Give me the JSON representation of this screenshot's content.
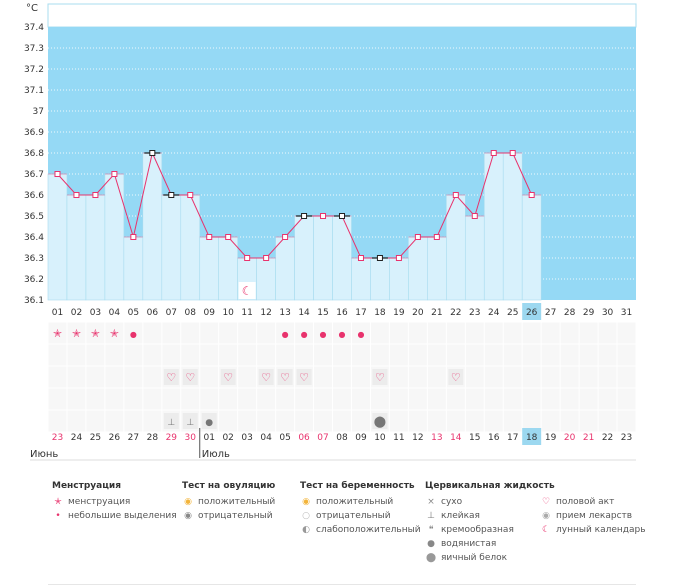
{
  "chart_data": {
    "type": "bar+line",
    "unit_label": "°C",
    "ylim": [
      36.1,
      37.4
    ],
    "y_ticks": [
      "37.4",
      "37.3",
      "37.2",
      "37.1",
      "37",
      "36.9",
      "36.8",
      "36.7",
      "36.6",
      "36.5",
      "36.4",
      "36.3",
      "36.2",
      "36.1"
    ],
    "cycle_days": [
      "01",
      "02",
      "03",
      "04",
      "05",
      "06",
      "07",
      "08",
      "09",
      "10",
      "11",
      "12",
      "13",
      "14",
      "15",
      "16",
      "17",
      "18",
      "19",
      "20",
      "21",
      "22",
      "23",
      "24",
      "25",
      "26",
      "27",
      "28",
      "29",
      "30",
      "31"
    ],
    "temperatures": [
      36.7,
      36.6,
      36.6,
      36.7,
      36.4,
      36.8,
      36.6,
      36.6,
      36.4,
      36.4,
      36.3,
      36.3,
      36.4,
      36.5,
      36.5,
      36.5,
      36.3,
      36.3,
      36.3,
      36.4,
      36.4,
      36.6,
      36.5,
      36.8,
      36.8,
      36.6,
      null,
      null,
      null,
      null,
      null
    ],
    "highlighted_points": [
      "06",
      "07",
      "14",
      "16",
      "18"
    ],
    "current_day": "26",
    "dates": [
      {
        "d": "23",
        "red": true
      },
      {
        "d": "24",
        "red": false
      },
      {
        "d": "25",
        "red": false
      },
      {
        "d": "26",
        "red": false
      },
      {
        "d": "27",
        "red": false
      },
      {
        "d": "28",
        "red": false
      },
      {
        "d": "29",
        "red": true
      },
      {
        "d": "30",
        "red": true
      },
      {
        "d": "01",
        "red": false
      },
      {
        "d": "02",
        "red": false
      },
      {
        "d": "03",
        "red": false
      },
      {
        "d": "04",
        "red": false
      },
      {
        "d": "05",
        "red": false
      },
      {
        "d": "06",
        "red": true
      },
      {
        "d": "07",
        "red": true
      },
      {
        "d": "08",
        "red": false
      },
      {
        "d": "09",
        "red": false
      },
      {
        "d": "10",
        "red": false
      },
      {
        "d": "11",
        "red": false
      },
      {
        "d": "12",
        "red": false
      },
      {
        "d": "13",
        "red": true
      },
      {
        "d": "14",
        "red": true
      },
      {
        "d": "15",
        "red": false
      },
      {
        "d": "16",
        "red": false
      },
      {
        "d": "17",
        "red": false
      },
      {
        "d": "18",
        "red": false
      },
      {
        "d": "19",
        "red": false
      },
      {
        "d": "20",
        "red": true
      },
      {
        "d": "21",
        "red": true
      },
      {
        "d": "22",
        "red": false
      },
      {
        "d": "23",
        "red": false
      }
    ],
    "month_labels": [
      {
        "text": "Июнь",
        "start_index": 0
      },
      {
        "text": "Июль",
        "start_index": 8
      }
    ],
    "menstruation": [
      "heavy",
      "heavy",
      "heavy",
      "heavy",
      "light",
      "",
      "",
      "",
      "",
      "",
      "",
      "",
      "light",
      "light",
      "light",
      "light",
      "light"
    ],
    "sex_days": [
      "07",
      "08",
      "10",
      "12",
      "13",
      "14",
      "18",
      "22"
    ],
    "mucus_days": [
      {
        "day": "07",
        "kind": "sticky"
      },
      {
        "day": "08",
        "kind": "sticky"
      },
      {
        "day": "09",
        "kind": "watery"
      },
      {
        "day": "18",
        "kind": "egg-white"
      }
    ],
    "lunar_day": "11",
    "colors": {
      "band": "#95d9f5",
      "bar": "#d8f1fc",
      "bar_border": "#a8dcef",
      "line": "#e8336d",
      "highlight_bg": "#9cd8f0",
      "red_text": "#e8336d"
    }
  },
  "legend": {
    "menstruation": {
      "title": "Менструация",
      "items": [
        "менструация",
        "небольшие выделения"
      ]
    },
    "ovulation_test": {
      "title": "Тест на овуляцию",
      "items": [
        "положительный",
        "отрицательный"
      ]
    },
    "pregnancy_test": {
      "title": "Тест на беременность",
      "items": [
        "положительный",
        "отрицательный",
        "слабоположительный"
      ]
    },
    "cervical_fluid": {
      "title": "Цервикальная жидкость",
      "items": [
        "сухо",
        "клейкая",
        "кремообразная",
        "водянистая",
        "яичный белок"
      ]
    },
    "other": {
      "items": [
        "половой акт",
        "прием лекарств",
        "лунный календарь"
      ]
    }
  }
}
